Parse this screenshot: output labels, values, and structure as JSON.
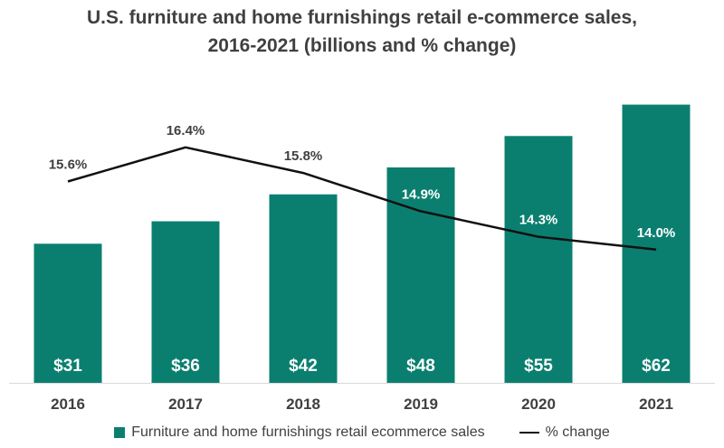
{
  "chart_data": {
    "type": "bar",
    "title": "U.S. furniture and home furnishings retail e-commerce sales, 2016-2021 (billions and % change)",
    "title_lines": [
      "U.S. furniture and home furnishings retail e-commerce sales,",
      "2016-2021 (billions and % change)"
    ],
    "categories": [
      "2016",
      "2017",
      "2018",
      "2019",
      "2020",
      "2021"
    ],
    "series": [
      {
        "name": "Furniture and home furnishings retail ecommerce sales",
        "kind": "bar",
        "values": [
          31,
          36,
          42,
          48,
          55,
          62
        ],
        "labels": [
          "$31",
          "$36",
          "$42",
          "$48",
          "$55",
          "$62"
        ],
        "color": "#0b7f6f"
      },
      {
        "name": "% change",
        "kind": "line",
        "values": [
          15.6,
          16.4,
          15.8,
          14.9,
          14.3,
          14.0
        ],
        "labels": [
          "15.6%",
          "16.4%",
          "15.8%",
          "14.9%",
          "14.3%",
          "14.0%"
        ],
        "color": "#111111"
      }
    ],
    "xlabel": "",
    "ylabel": "",
    "ylim_bar": [
      0,
      72
    ],
    "ylim_line": [
      10,
      18.5
    ],
    "grid": false,
    "legend_position": "bottom"
  }
}
